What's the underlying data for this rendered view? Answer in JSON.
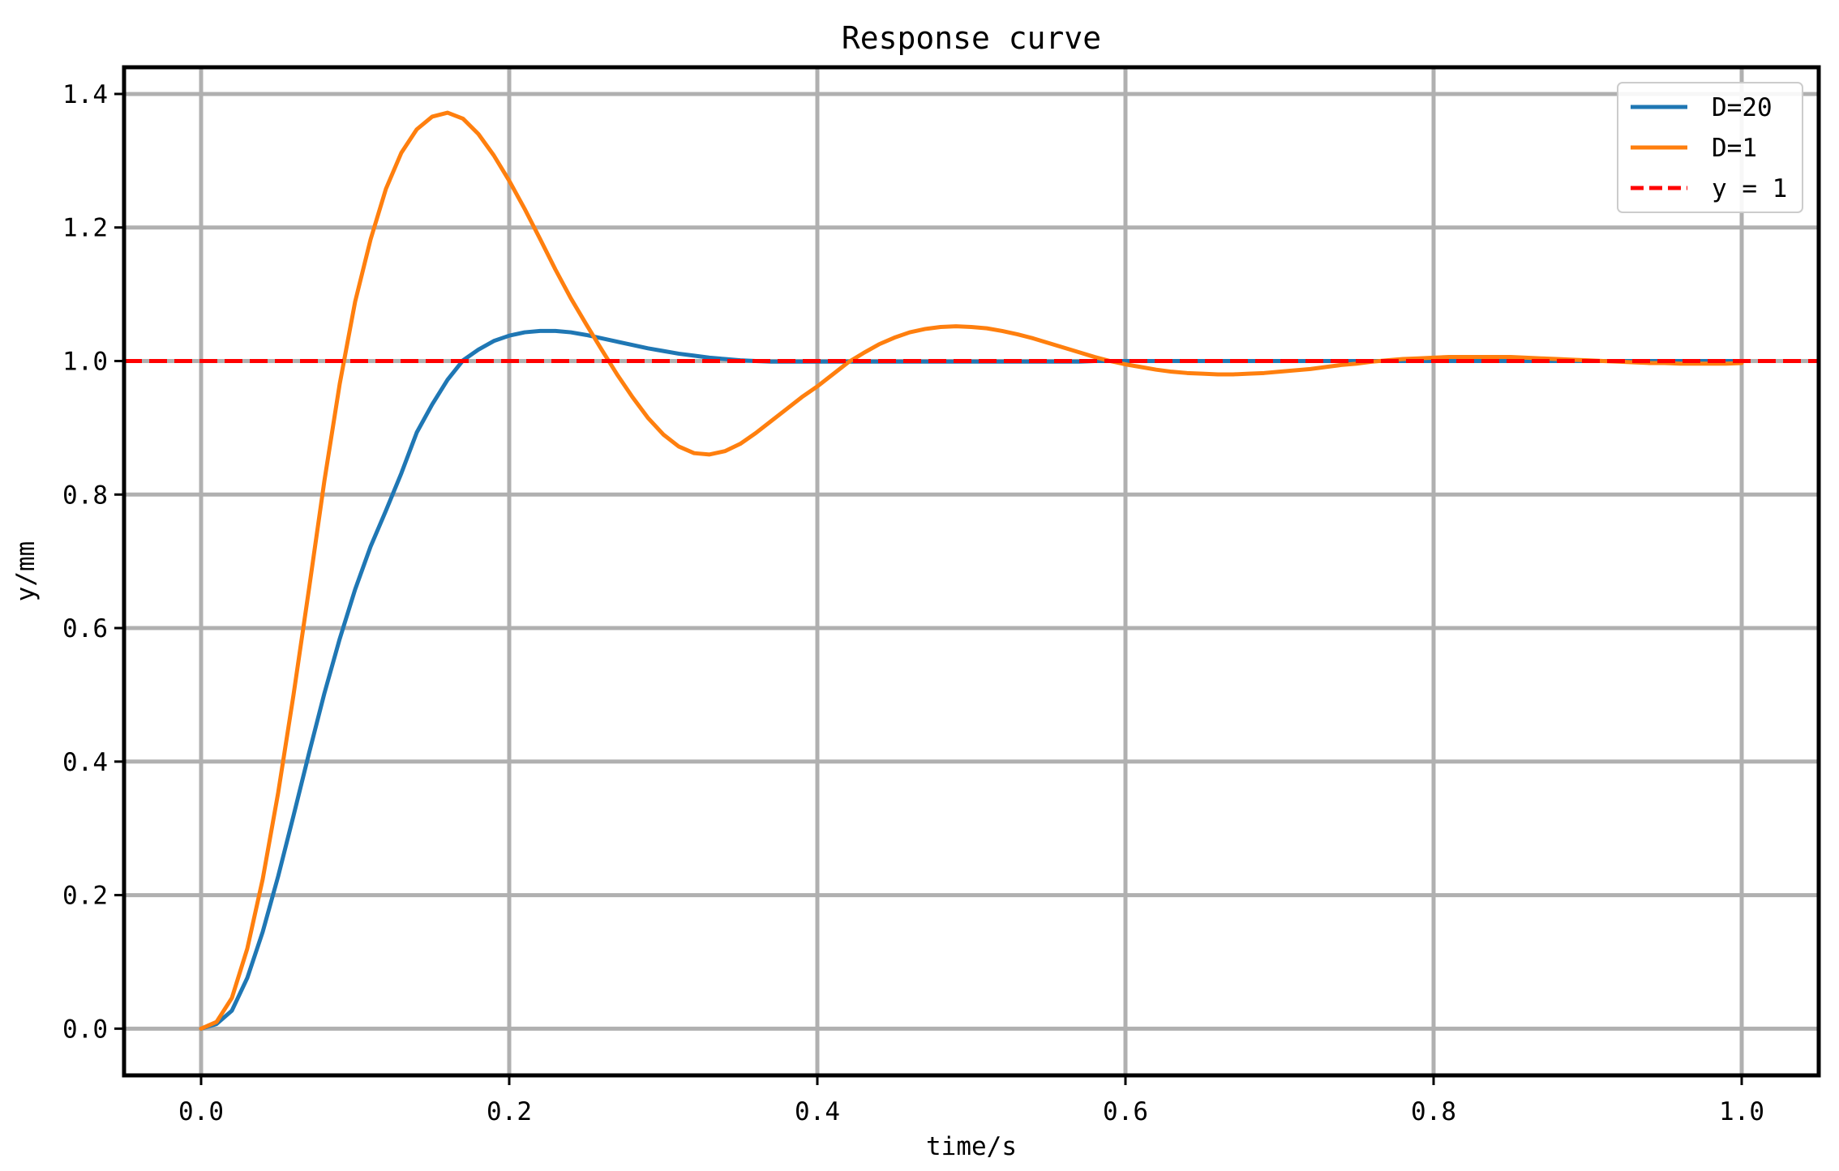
{
  "chart_data": {
    "type": "line",
    "title": "Response curve",
    "xlabel": "time/s",
    "ylabel": "y/mm",
    "xlim": [
      -0.05,
      1.05
    ],
    "ylim": [
      -0.07,
      1.44
    ],
    "grid": true,
    "legend_position": "top-right",
    "x_ticks": [
      {
        "value": 0.0,
        "label": "0.0"
      },
      {
        "value": 0.2,
        "label": "0.2"
      },
      {
        "value": 0.4,
        "label": "0.4"
      },
      {
        "value": 0.6,
        "label": "0.6"
      },
      {
        "value": 0.8,
        "label": "0.8"
      },
      {
        "value": 1.0,
        "label": "1.0"
      }
    ],
    "y_ticks": [
      {
        "value": 0.0,
        "label": "0.0"
      },
      {
        "value": 0.2,
        "label": "0.2"
      },
      {
        "value": 0.4,
        "label": "0.4"
      },
      {
        "value": 0.6,
        "label": "0.6"
      },
      {
        "value": 0.8,
        "label": "0.8"
      },
      {
        "value": 1.0,
        "label": "1.0"
      },
      {
        "value": 1.2,
        "label": "1.2"
      },
      {
        "value": 1.4,
        "label": "1.4"
      }
    ],
    "x": [
      0.0,
      0.01,
      0.02,
      0.03,
      0.04,
      0.05,
      0.06,
      0.07,
      0.08,
      0.09,
      0.1,
      0.11,
      0.12,
      0.13,
      0.14,
      0.15,
      0.16,
      0.17,
      0.18,
      0.19,
      0.2,
      0.21,
      0.22,
      0.23,
      0.24,
      0.25,
      0.26,
      0.27,
      0.28,
      0.29,
      0.3,
      0.31,
      0.32,
      0.33,
      0.34,
      0.35,
      0.36,
      0.37,
      0.38,
      0.39,
      0.4,
      0.41,
      0.42,
      0.43,
      0.44,
      0.45,
      0.46,
      0.47,
      0.48,
      0.49,
      0.5,
      0.51,
      0.52,
      0.53,
      0.54,
      0.55,
      0.56,
      0.57,
      0.58,
      0.59,
      0.6,
      0.61,
      0.62,
      0.63,
      0.64,
      0.65,
      0.66,
      0.67,
      0.68,
      0.69,
      0.7,
      0.71,
      0.72,
      0.73,
      0.74,
      0.75,
      0.76,
      0.77,
      0.78,
      0.79,
      0.8,
      0.81,
      0.82,
      0.83,
      0.84,
      0.85,
      0.86,
      0.87,
      0.88,
      0.89,
      0.9,
      0.91,
      0.92,
      0.93,
      0.94,
      0.95,
      0.96,
      0.97,
      0.98,
      0.99,
      1.0
    ],
    "series": [
      {
        "name": "D=20",
        "color": "#1f77b4",
        "style": "solid",
        "values": [
          0.0,
          0.007,
          0.027,
          0.076,
          0.145,
          0.228,
          0.319,
          0.412,
          0.502,
          0.584,
          0.658,
          0.722,
          0.776,
          0.832,
          0.893,
          0.935,
          0.972,
          1.001,
          1.017,
          1.03,
          1.038,
          1.043,
          1.045,
          1.045,
          1.043,
          1.039,
          1.034,
          1.029,
          1.024,
          1.019,
          1.015,
          1.011,
          1.008,
          1.005,
          1.003,
          1.001,
          1.0,
          0.999,
          0.999,
          0.999,
          0.999,
          0.999,
          0.999,
          0.999,
          0.999,
          0.999,
          0.999,
          0.999,
          0.999,
          0.999,
          0.999,
          0.999,
          0.999,
          0.999,
          0.999,
          0.999,
          0.999,
          0.999,
          1.0,
          1.0,
          1.0,
          1.0,
          1.0,
          1.0,
          1.0,
          1.0,
          1.0,
          1.0,
          1.0,
          1.0,
          1.0,
          1.0,
          1.0,
          1.0,
          1.0,
          1.0,
          1.0,
          1.0,
          1.0,
          1.0,
          1.0,
          1.0,
          1.0,
          1.0,
          1.0,
          1.0,
          1.0,
          1.0,
          1.0,
          1.0,
          1.0,
          1.0,
          1.0,
          1.0,
          1.0,
          1.0,
          1.0,
          1.0,
          1.0,
          1.0,
          1.0
        ]
      },
      {
        "name": "D=1",
        "color": "#ff7f0e",
        "style": "solid",
        "values": [
          0.0,
          0.01,
          0.046,
          0.12,
          0.224,
          0.353,
          0.5,
          0.658,
          0.82,
          0.966,
          1.089,
          1.182,
          1.258,
          1.312,
          1.347,
          1.366,
          1.372,
          1.363,
          1.34,
          1.308,
          1.27,
          1.228,
          1.183,
          1.137,
          1.094,
          1.055,
          1.017,
          0.98,
          0.946,
          0.915,
          0.89,
          0.872,
          0.862,
          0.86,
          0.865,
          0.876,
          0.892,
          0.91,
          0.928,
          0.946,
          0.962,
          0.98,
          0.998,
          1.012,
          1.025,
          1.035,
          1.043,
          1.048,
          1.051,
          1.052,
          1.051,
          1.049,
          1.045,
          1.04,
          1.034,
          1.027,
          1.02,
          1.013,
          1.006,
          1.0,
          0.995,
          0.991,
          0.987,
          0.984,
          0.982,
          0.981,
          0.98,
          0.98,
          0.981,
          0.982,
          0.984,
          0.986,
          0.988,
          0.991,
          0.994,
          0.996,
          0.999,
          1.001,
          1.003,
          1.004,
          1.005,
          1.006,
          1.006,
          1.006,
          1.006,
          1.006,
          1.005,
          1.004,
          1.003,
          1.002,
          1.001,
          1.0,
          0.999,
          0.998,
          0.997,
          0.997,
          0.996,
          0.996,
          0.996,
          0.996,
          0.997
        ]
      },
      {
        "name": "y = 1",
        "color": "#ff0000",
        "style": "dashed",
        "constant": 1.0
      }
    ]
  }
}
